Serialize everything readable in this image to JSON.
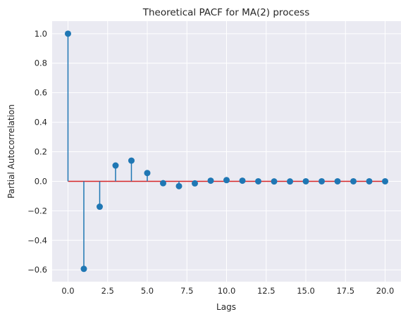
{
  "chart_data": {
    "type": "stem",
    "title": "Theoretical PACF for MA(2) process",
    "xlabel": "Lags",
    "ylabel": "Partial Autocorrelation",
    "x": [
      0,
      1,
      2,
      3,
      4,
      5,
      6,
      7,
      8,
      9,
      10,
      11,
      12,
      13,
      14,
      15,
      16,
      17,
      18,
      19,
      20
    ],
    "values": [
      1.0,
      -0.593,
      -0.172,
      0.107,
      0.14,
      0.056,
      -0.013,
      -0.033,
      -0.014,
      0.004,
      0.008,
      0.004,
      0.0,
      -0.001,
      -0.001,
      0.0,
      0.0,
      0.0,
      0.0,
      0.0,
      0.0
    ],
    "xlim": [
      -0.999,
      20.999
    ],
    "ylim": [
      -0.68,
      1.085
    ],
    "xticks": [
      0.0,
      2.5,
      5.0,
      7.5,
      10.0,
      12.5,
      15.0,
      17.5,
      20.0
    ],
    "xtick_labels": [
      "0.0",
      "2.5",
      "5.0",
      "7.5",
      "10.0",
      "12.5",
      "15.0",
      "17.5",
      "20.0"
    ],
    "yticks": [
      -0.6,
      -0.4,
      -0.2,
      0.0,
      0.2,
      0.4,
      0.6,
      0.8,
      1.0
    ],
    "ytick_labels": [
      "−0.6",
      "−0.4",
      "−0.2",
      "0.0",
      "0.2",
      "0.4",
      "0.6",
      "0.8",
      "1.0"
    ],
    "grid": true,
    "baseline": 0.0,
    "colors": {
      "background": "#eaeaf2",
      "grid": "#ffffff",
      "stem": "#1f77b4",
      "marker": "#1f77b4",
      "baseline": "#d62728"
    }
  }
}
